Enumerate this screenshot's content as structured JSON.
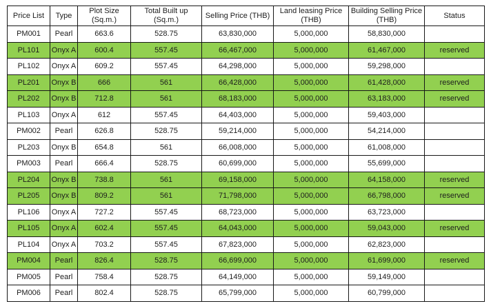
{
  "table": {
    "highlight_color": "#92D050",
    "columns": [
      {
        "key": "price-list",
        "label": "Price List",
        "sub": ""
      },
      {
        "key": "type",
        "label": "Type",
        "sub": ""
      },
      {
        "key": "plot-size",
        "label": "Plot Size",
        "sub": "(Sq.m.)"
      },
      {
        "key": "total-built-up",
        "label": "Total Built up",
        "sub": "(Sq.m.)"
      },
      {
        "key": "selling-price",
        "label": "Selling Price (THB)",
        "sub": ""
      },
      {
        "key": "land-leasing-price",
        "label": "Land leasing Price",
        "sub": "(THB)"
      },
      {
        "key": "building-selling-price",
        "label": "Building Selling Price",
        "sub": "(THB)"
      },
      {
        "key": "status",
        "label": "Status",
        "sub": ""
      }
    ],
    "rows": [
      {
        "highlighted": false,
        "cells": [
          "PM001",
          "Pearl",
          "663.6",
          "528.75",
          "63,830,000",
          "5,000,000",
          "58,830,000",
          ""
        ]
      },
      {
        "highlighted": true,
        "cells": [
          "PL101",
          "Onyx A",
          "600.4",
          "557.45",
          "66,467,000",
          "5,000,000",
          "61,467,000",
          "reserved"
        ]
      },
      {
        "highlighted": false,
        "cells": [
          "PL102",
          "Onyx A",
          "609.2",
          "557.45",
          "64,298,000",
          "5,000,000",
          "59,298,000",
          ""
        ]
      },
      {
        "highlighted": true,
        "cells": [
          "PL201",
          "Onyx B",
          "666",
          "561",
          "66,428,000",
          "5,000,000",
          "61,428,000",
          "reserved"
        ]
      },
      {
        "highlighted": true,
        "cells": [
          "PL202",
          "Onyx B",
          "712.8",
          "561",
          "68,183,000",
          "5,000,000",
          "63,183,000",
          "reserved"
        ]
      },
      {
        "highlighted": false,
        "cells": [
          "PL103",
          "Onyx A",
          "612",
          "557.45",
          "64,403,000",
          "5,000,000",
          "59,403,000",
          ""
        ]
      },
      {
        "highlighted": false,
        "cells": [
          "PM002",
          "Pearl",
          "626.8",
          "528.75",
          "59,214,000",
          "5,000,000",
          "54,214,000",
          ""
        ]
      },
      {
        "highlighted": false,
        "cells": [
          "PL203",
          "Onyx B",
          "654.8",
          "561",
          "66,008,000",
          "5,000,000",
          "61,008,000",
          ""
        ]
      },
      {
        "highlighted": false,
        "cells": [
          "PM003",
          "Pearl",
          "666.4",
          "528.75",
          "60,699,000",
          "5,000,000",
          "55,699,000",
          ""
        ]
      },
      {
        "highlighted": true,
        "cells": [
          "PL204",
          "Onyx B",
          "738.8",
          "561",
          "69,158,000",
          "5,000,000",
          "64,158,000",
          "reserved"
        ]
      },
      {
        "highlighted": true,
        "cells": [
          "PL205",
          "Onyx B",
          "809.2",
          "561",
          "71,798,000",
          "5,000,000",
          "66,798,000",
          "reserved"
        ]
      },
      {
        "highlighted": false,
        "cells": [
          "PL106",
          "Onyx A",
          "727.2",
          "557.45",
          "68,723,000",
          "5,000,000",
          "63,723,000",
          ""
        ]
      },
      {
        "highlighted": true,
        "cells": [
          "PL105",
          "Onyx A",
          "602.4",
          "557.45",
          "64,043,000",
          "5,000,000",
          "59,043,000",
          "reserved"
        ]
      },
      {
        "highlighted": false,
        "cells": [
          "PL104",
          "Onyx A",
          "703.2",
          "557.45",
          "67,823,000",
          "5,000,000",
          "62,823,000",
          ""
        ]
      },
      {
        "highlighted": true,
        "cells": [
          "PM004",
          "Pearl",
          "826.4",
          "528.75",
          "66,699,000",
          "5,000,000",
          "61,699,000",
          "reserved"
        ]
      },
      {
        "highlighted": false,
        "cells": [
          "PM005",
          "Pearl",
          "758.4",
          "528.75",
          "64,149,000",
          "5,000,000",
          "59,149,000",
          ""
        ]
      },
      {
        "highlighted": false,
        "cells": [
          "PM006",
          "Pearl",
          "802.4",
          "528.75",
          "65,799,000",
          "5,000,000",
          "60,799,000",
          ""
        ]
      }
    ]
  }
}
